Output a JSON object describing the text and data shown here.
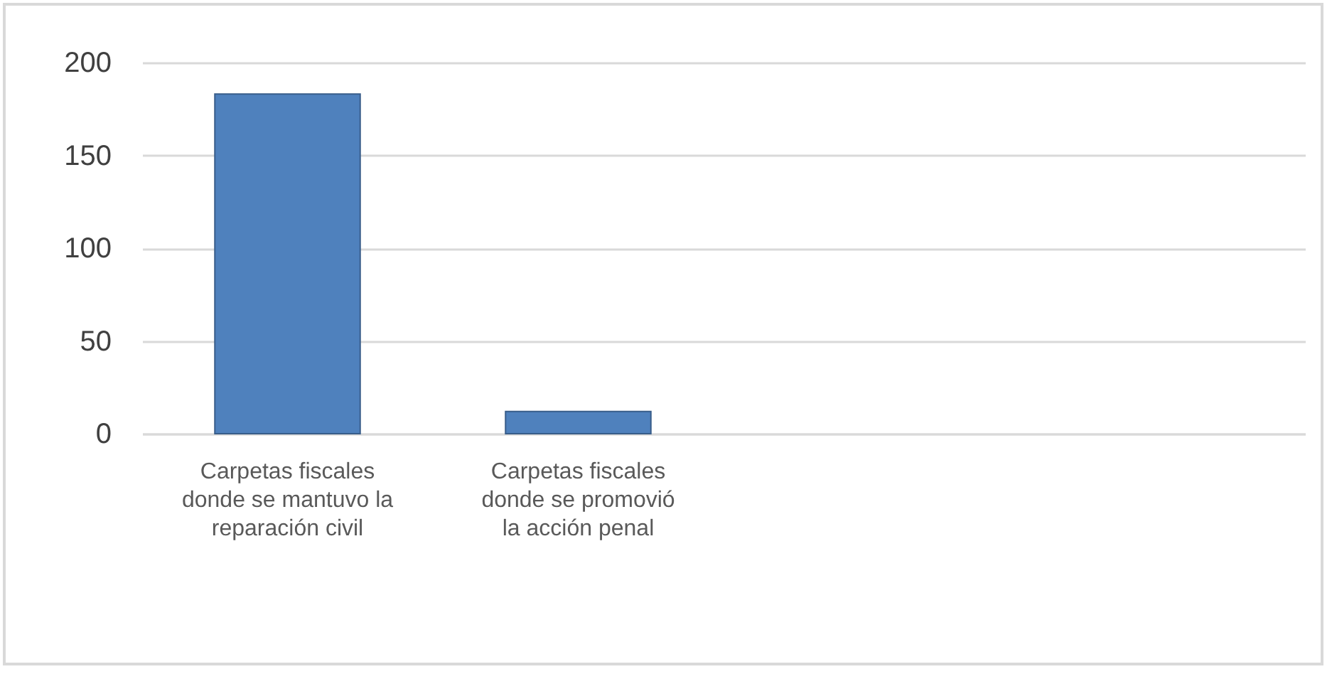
{
  "chart_data": {
    "type": "bar",
    "categories": [
      "Carpetas fiscales donde se mantuvo la reparación civil",
      "Carpetas fiscales donde se promovió la acción penal",
      null,
      null
    ],
    "values": [
      183,
      12,
      null,
      null
    ],
    "color": "#4f81bd",
    "ylim": [
      0,
      200
    ],
    "yticks": [
      0,
      50,
      100,
      150,
      200
    ],
    "grid": "y"
  }
}
